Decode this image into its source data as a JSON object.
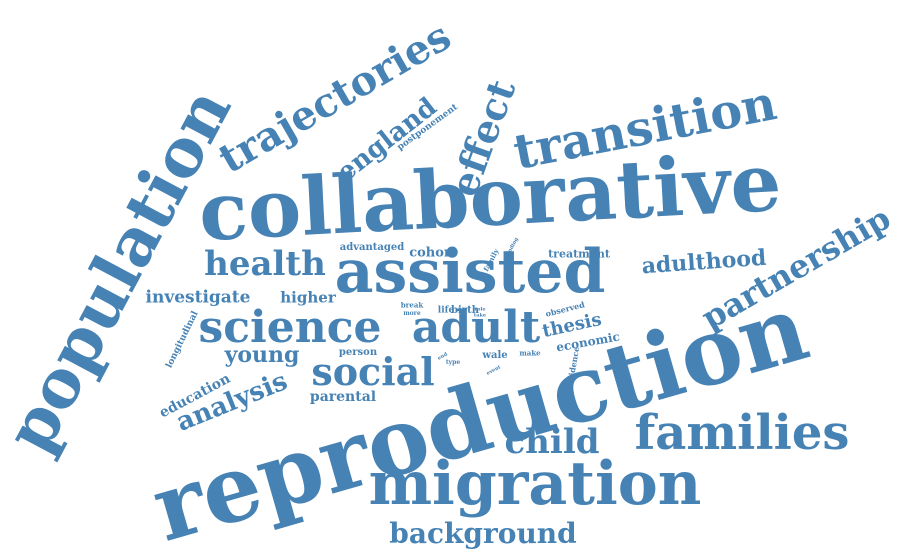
{
  "color": "#4682b4",
  "words": {
    "reproduction": "reproduction",
    "collaborative": "collaborative",
    "population": "population",
    "migration": "migration",
    "assisted": "assisted",
    "transition": "transition",
    "trajectories": "trajectories",
    "families": "families",
    "science": "science",
    "adult": "adult",
    "effect": "effect",
    "health": "health",
    "partnership": "partnership",
    "social": "social",
    "england": "england",
    "child": "child",
    "background": "background",
    "analysis": "analysis",
    "young": "young",
    "adulthood": "adulthood",
    "thesis": "thesis",
    "investigate": "investigate",
    "education": "education",
    "higher": "higher",
    "parental": "parental",
    "cohort": "cohort",
    "economic": "economic",
    "advantaged": "advantaged",
    "treatment": "treatment",
    "person": "person",
    "wale": "wale",
    "longitudinal": "longitudinal",
    "postponement": "postponement",
    "birth": "birth",
    "life": "life",
    "evidence": "evidence",
    "observed": "observed",
    "family": "family",
    "break": "break",
    "more": "more",
    "finding": "finding",
    "make": "make",
    "type": "type",
    "event": "event",
    "role": "role",
    "take": "take",
    "end": "end"
  }
}
